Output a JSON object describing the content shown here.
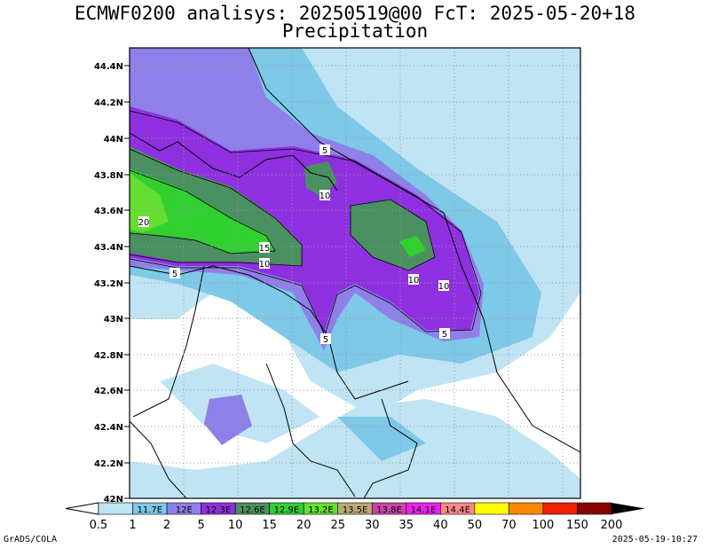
{
  "title": {
    "line1": "ECMWF0200 analisys: 20250519@00 FcT: 2025-05-20+18",
    "line2": "Precipitation"
  },
  "lat_labels": [
    "44.4N",
    "44.2N",
    "44N",
    "43.8N",
    "43.6N",
    "43.4N",
    "43.2N",
    "43N",
    "42.8N",
    "42.6N",
    "42.4N",
    "42.2N",
    "42N"
  ],
  "contour_labels": [
    "5",
    "10",
    "20",
    "15",
    "10",
    "5",
    "10",
    "10",
    "5",
    "5"
  ],
  "colorbar": {
    "colors": [
      "#c0e4f4",
      "#7ec8e8",
      "#8e80e8",
      "#8e30e0",
      "#4a9060",
      "#30d030",
      "#66dd33",
      "#bbaa77",
      "#cc44aa",
      "#f020f0",
      "#ff8888",
      "#ffff00",
      "#ff8800",
      "#ee2200",
      "#880000"
    ],
    "box_labels": [
      "",
      "11.7E",
      "12E",
      "12.3E",
      "12.6E",
      "12.9E",
      "13.2E",
      "13.5E",
      "13.8E",
      "14.1E",
      "14.4E",
      "",
      "",
      ""
    ],
    "ticks": [
      "0.5",
      "1",
      "2",
      "5",
      "10",
      "15",
      "20",
      "25",
      "30",
      "35",
      "40",
      "50",
      "70",
      "100",
      "150",
      "200"
    ]
  },
  "footer": {
    "left": "GrADS/COLA",
    "right": "2025-05-19-10:27"
  }
}
